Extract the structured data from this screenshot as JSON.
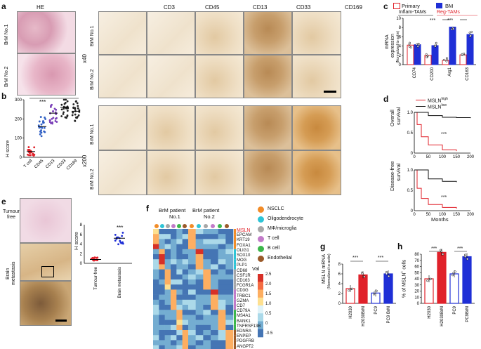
{
  "panels": [
    "a",
    "b",
    "c",
    "d",
    "e",
    "f",
    "g",
    "h"
  ],
  "panel_a": {
    "he_title": "HE",
    "stains": [
      "CD3",
      "CD45",
      "CD13",
      "CD33",
      "CD169"
    ],
    "rows": [
      "BrM No.1",
      "BrM No.2"
    ],
    "mag_low": "x40",
    "mag_high": "x200"
  },
  "panel_b": {
    "ylabel": "H score",
    "stars": "***",
    "yticks": [
      "0",
      "100",
      "200",
      "300"
    ],
    "categories": [
      "T cell",
      "CD45",
      "CD13",
      "CD33",
      "CD169"
    ],
    "colors": [
      "#e0212a",
      "#2f5fc4",
      "#7a3fb8",
      "#222222",
      "#222222"
    ]
  },
  "panel_c": {
    "legend_primary": "Primary",
    "legend_bm": "BM",
    "group1": "Inflam-TAMs",
    "group2": "Reg-TAMs",
    "ylabel1": "mRNA",
    "ylabel2": "expression",
    "ylabel3": "(Normalized to actin)",
    "yticks": [
      "0",
      "2",
      "4",
      "6",
      "8",
      "10"
    ],
    "genes": [
      "CD74",
      "CD200",
      "Arg1",
      "CD163"
    ],
    "stars1": "***",
    "stars2": "***"
  },
  "panel_d": {
    "legend_high": "MSLN",
    "legend_high_sup": "high",
    "legend_low": "MSLN",
    "legend_low_sup": "low",
    "ylabel_os1": "Overall",
    "ylabel_os2": "survival",
    "ylabel_dfs1": "Disease-free",
    "ylabel_dfs2": "survival",
    "yticks": [
      "0",
      "0.5",
      "1.0"
    ],
    "xticks": [
      "0",
      "50",
      "100",
      "150",
      "200"
    ],
    "xlabel": "Months",
    "stars_os": "***",
    "stars_dfs": "***"
  },
  "panel_e": {
    "label_tf1": "Tumour",
    "label_tf2": "free",
    "label_bm1": "Brain",
    "label_bm2": "metastasis",
    "ylabel": "H score",
    "yticks": [
      "0",
      "2",
      "4",
      "6",
      "8"
    ],
    "categories": [
      "Tumour-free",
      "Brain metastasis"
    ],
    "stars": "***"
  },
  "panel_f": {
    "patient1": "BrM patient",
    "patient1b": "No.1",
    "patient2": "BrM patient",
    "patient2b": "No.2",
    "genes": [
      "MSLN",
      "EPCAM",
      "KRT19",
      "FOXA1",
      "OLIG1",
      "SOX10",
      "MOG",
      "PLP1",
      "CD68",
      "CSF1R",
      "CD163",
      "FCGR1A",
      "CD3G",
      "TRBC1",
      "GZMA",
      "CD7",
      "CD79A",
      "MS4A1",
      "BANK1",
      "TNFRSF13B",
      "EDNRA",
      "ENPEP",
      "PDGFRB",
      "ANGPT2"
    ],
    "legend": [
      {
        "label": "NSCLC",
        "color": "#f28c28"
      },
      {
        "label": "Oligodendrocyte",
        "color": "#2ec4d6"
      },
      {
        "label": "MΦ/microglia",
        "color": "#a7a7a7"
      },
      {
        "label": "T cell",
        "color": "#c27bc9"
      },
      {
        "label": "B cell",
        "color": "#3cb64a"
      },
      {
        "label": "Endothelial",
        "color": "#9a5a2a"
      }
    ],
    "colorbar_title": "Val",
    "colorbar_ticks": [
      "2.5",
      "2.0",
      "1.5",
      "1.0",
      "0.5",
      "0",
      "-0.5"
    ]
  },
  "panel_g": {
    "ylabel1": "MSLN mRNA",
    "ylabel2": "(Normalized to actin)",
    "yticks": [
      "0",
      "2",
      "4",
      "6",
      "8"
    ],
    "categories": [
      "H2030",
      "H2030BrM",
      "PC9",
      "PC9 BrM"
    ],
    "stars1": "***",
    "stars2": "***"
  },
  "panel_h": {
    "ylabel": "% of MSLN",
    "ylabel_sup": "+",
    "ylabel_end": " cells",
    "yticks": [
      "0",
      "10",
      "20",
      "30",
      "40",
      "50",
      "60",
      "70",
      "80"
    ],
    "categories": [
      "H2030",
      "H2030BrM",
      "PC9",
      "PC9BrM"
    ],
    "stars1": "***",
    "stars2": "***"
  },
  "chart_data": [
    {
      "type": "bar",
      "panel": "c",
      "categories": [
        "CD74",
        "CD200",
        "Arg1",
        "CD163"
      ],
      "series": [
        {
          "name": "Primary",
          "values": [
            4.2,
            2.0,
            0.9,
            2.1
          ]
        },
        {
          "name": "BM",
          "values": [
            4.3,
            4.1,
            8.1,
            6.5
          ]
        }
      ],
      "ylim": [
        0,
        10
      ]
    },
    {
      "type": "bar",
      "panel": "g",
      "categories": [
        "H2030",
        "H2030BrM",
        "PC9",
        "PC9 BrM"
      ],
      "values": [
        3.0,
        5.8,
        2.1,
        6.0
      ],
      "ylim": [
        0,
        8
      ]
    },
    {
      "type": "bar",
      "panel": "h",
      "categories": [
        "H2030",
        "H2030BrM",
        "PC9",
        "PC9BrM"
      ],
      "values": [
        40,
        83,
        48,
        76
      ],
      "ylim": [
        0,
        80
      ]
    },
    {
      "type": "scatter",
      "panel": "e",
      "categories": [
        "Tumour-free",
        "Brain metastasis"
      ],
      "values": [
        0.8,
        5.2
      ],
      "ylim": [
        0,
        8
      ]
    },
    {
      "type": "scatter",
      "panel": "b",
      "categories": [
        "T cell",
        "CD45",
        "CD13",
        "CD33",
        "CD169"
      ],
      "values": [
        30,
        160,
        230,
        260,
        240
      ],
      "ylim": [
        0,
        300
      ]
    },
    {
      "type": "line",
      "panel": "d",
      "xlabel": "Months",
      "xlim": [
        0,
        200
      ],
      "ylim": [
        0,
        1
      ],
      "series": [
        {
          "name": "MSLN high OS",
          "x": [
            0,
            10,
            25,
            50,
            100,
            150
          ],
          "y": [
            1,
            0.7,
            0.4,
            0.2,
            0.08,
            0.05
          ]
        },
        {
          "name": "MSLN low OS",
          "x": [
            0,
            50,
            100,
            150,
            200
          ],
          "y": [
            1,
            0.92,
            0.88,
            0.87,
            0.86
          ]
        },
        {
          "name": "MSLN high DFS",
          "x": [
            0,
            10,
            25,
            50,
            100,
            150
          ],
          "y": [
            1,
            0.55,
            0.3,
            0.15,
            0.08,
            0.05
          ]
        },
        {
          "name": "MSLN low DFS",
          "x": [
            0,
            50,
            100,
            150
          ],
          "y": [
            1,
            0.78,
            0.72,
            0.7
          ]
        }
      ]
    }
  ]
}
